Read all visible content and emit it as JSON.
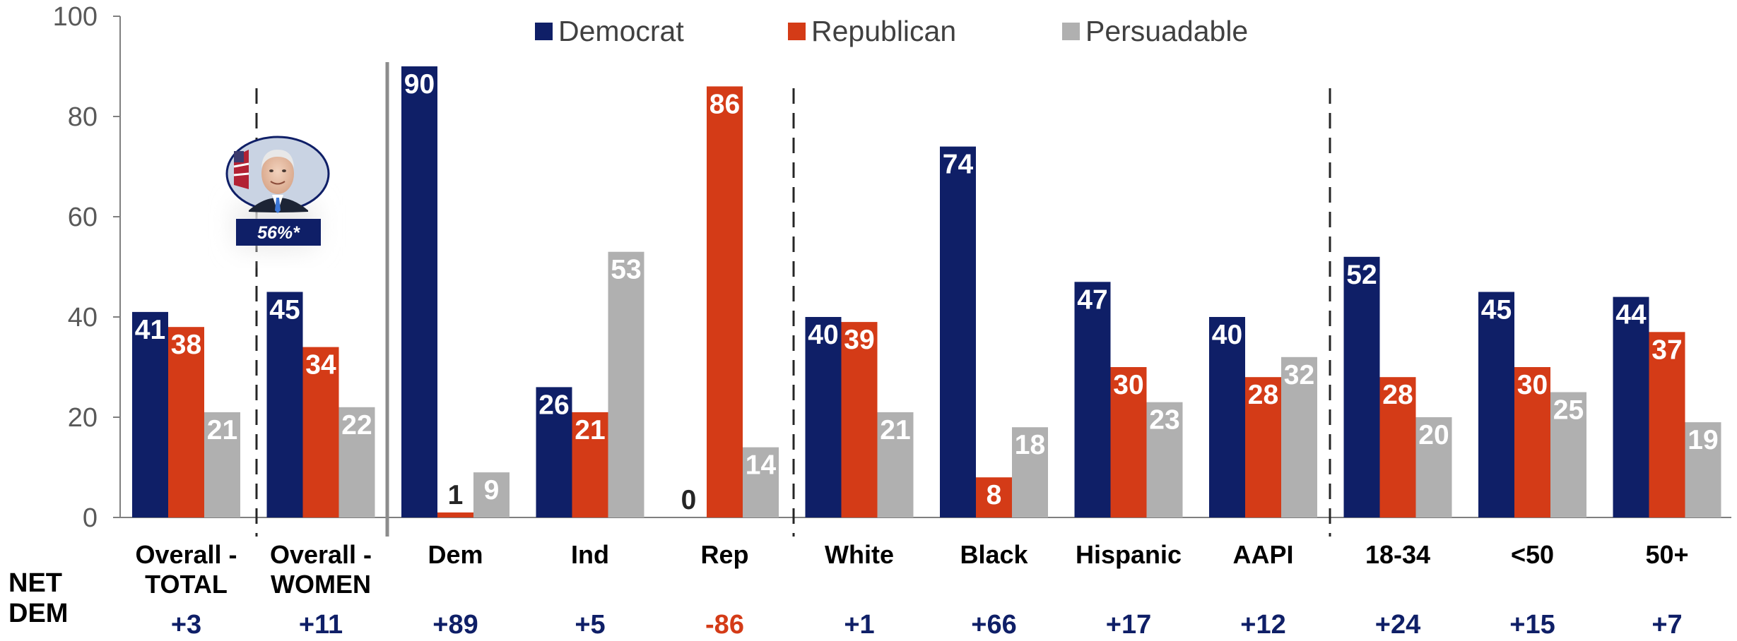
{
  "chart_data": {
    "type": "bar",
    "ylim": [
      0,
      100
    ],
    "yticks": [
      0,
      20,
      40,
      60,
      80,
      100
    ],
    "colors": {
      "Democrat": "#0f1f67",
      "Republican": "#d43b17",
      "Persuadable": "#b0b0b0",
      "negative": "#d43b17"
    },
    "legend": [
      "Democrat",
      "Republican",
      "Persuadable"
    ],
    "legend_position": "top",
    "grid": false,
    "categories": [
      "Overall - TOTAL",
      "Overall - WOMEN",
      "Dem",
      "Ind",
      "Rep",
      "White",
      "Black",
      "Hispanic",
      "AAPI",
      "18-34",
      "<50",
      "50+"
    ],
    "category_lines": [
      [
        "Overall -",
        "TOTAL"
      ],
      [
        "Overall -",
        "WOMEN"
      ],
      [
        "Dem"
      ],
      [
        "Ind"
      ],
      [
        "Rep"
      ],
      [
        "White"
      ],
      [
        "Black"
      ],
      [
        "Hispanic"
      ],
      [
        "AAPI"
      ],
      [
        "18-34"
      ],
      [
        "<50"
      ],
      [
        "50+"
      ]
    ],
    "series": [
      {
        "name": "Democrat",
        "values": [
          41,
          45,
          90,
          26,
          0,
          40,
          74,
          47,
          40,
          52,
          45,
          44
        ]
      },
      {
        "name": "Republican",
        "values": [
          38,
          34,
          1,
          21,
          86,
          39,
          8,
          30,
          28,
          28,
          30,
          37
        ]
      },
      {
        "name": "Persuadable",
        "values": [
          21,
          22,
          9,
          53,
          14,
          21,
          18,
          23,
          32,
          20,
          25,
          19
        ]
      }
    ],
    "net_dem_label": [
      "NET",
      "DEM"
    ],
    "net_dem": [
      "+3",
      "+11",
      "+89",
      "+5",
      "-86",
      "+1",
      "+66",
      "+17",
      "+12",
      "+24",
      "+15",
      "+7"
    ],
    "annotation": "56%*",
    "annotation_image": "joe-biden-portrait"
  }
}
